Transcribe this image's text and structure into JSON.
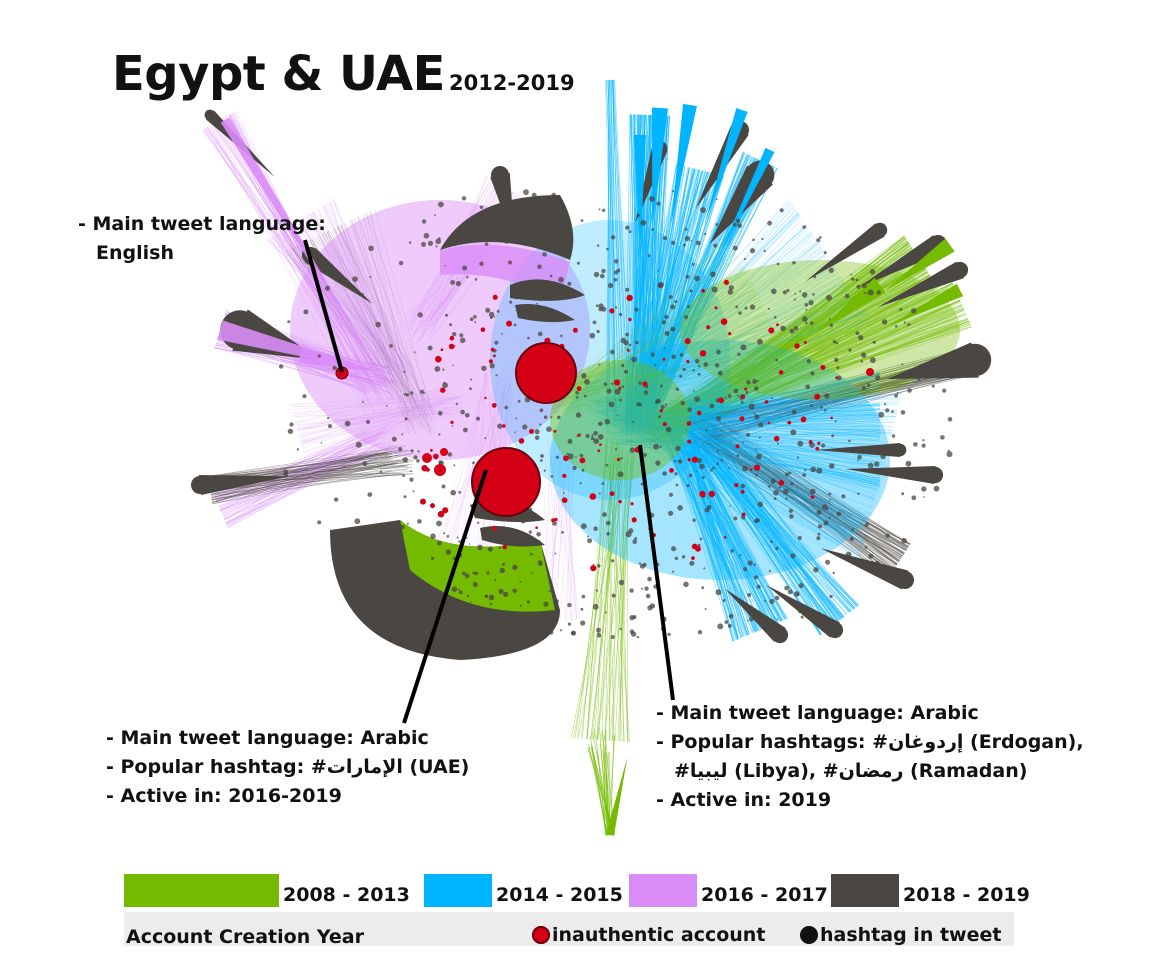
{
  "title": {
    "main": "Egypt & UAE",
    "years": "2012-2019"
  },
  "colors": {
    "2008_2013": "#74bb00",
    "2014_2015": "#00b5ff",
    "2016_2017": "#d98cf7",
    "2018_2019": "#4a4641",
    "inauthentic": "#d40016",
    "hashtag": "#111111"
  },
  "annotations": {
    "english": {
      "line1": "- Main tweet language:",
      "line2": "English"
    },
    "uae": {
      "line1": "- Main tweet language: Arabic",
      "line2": "- Popular hashtag: #الإمارات (UAE)",
      "line3": "- Active in: 2016-2019"
    },
    "erdogan": {
      "line1": "- Main tweet language: Arabic",
      "line2": "- Popular hashtags: #إردوغان (Erdogan),",
      "line3": "#ليبيا (Libya), #رمضان (Ramadan)",
      "line4": "- Active in: 2019"
    }
  },
  "legend": {
    "items": [
      {
        "label": "2008 - 2013",
        "color": "#74bb00"
      },
      {
        "label": "2014 - 2015",
        "color": "#00b5ff"
      },
      {
        "label": "2016 - 2017",
        "color": "#d98cf7"
      },
      {
        "label": "2018 - 2019",
        "color": "#4a4641"
      }
    ],
    "caption": "Account Creation Year",
    "inauthentic_label": "inauthentic account",
    "hashtag_label": "hashtag in tweet"
  }
}
